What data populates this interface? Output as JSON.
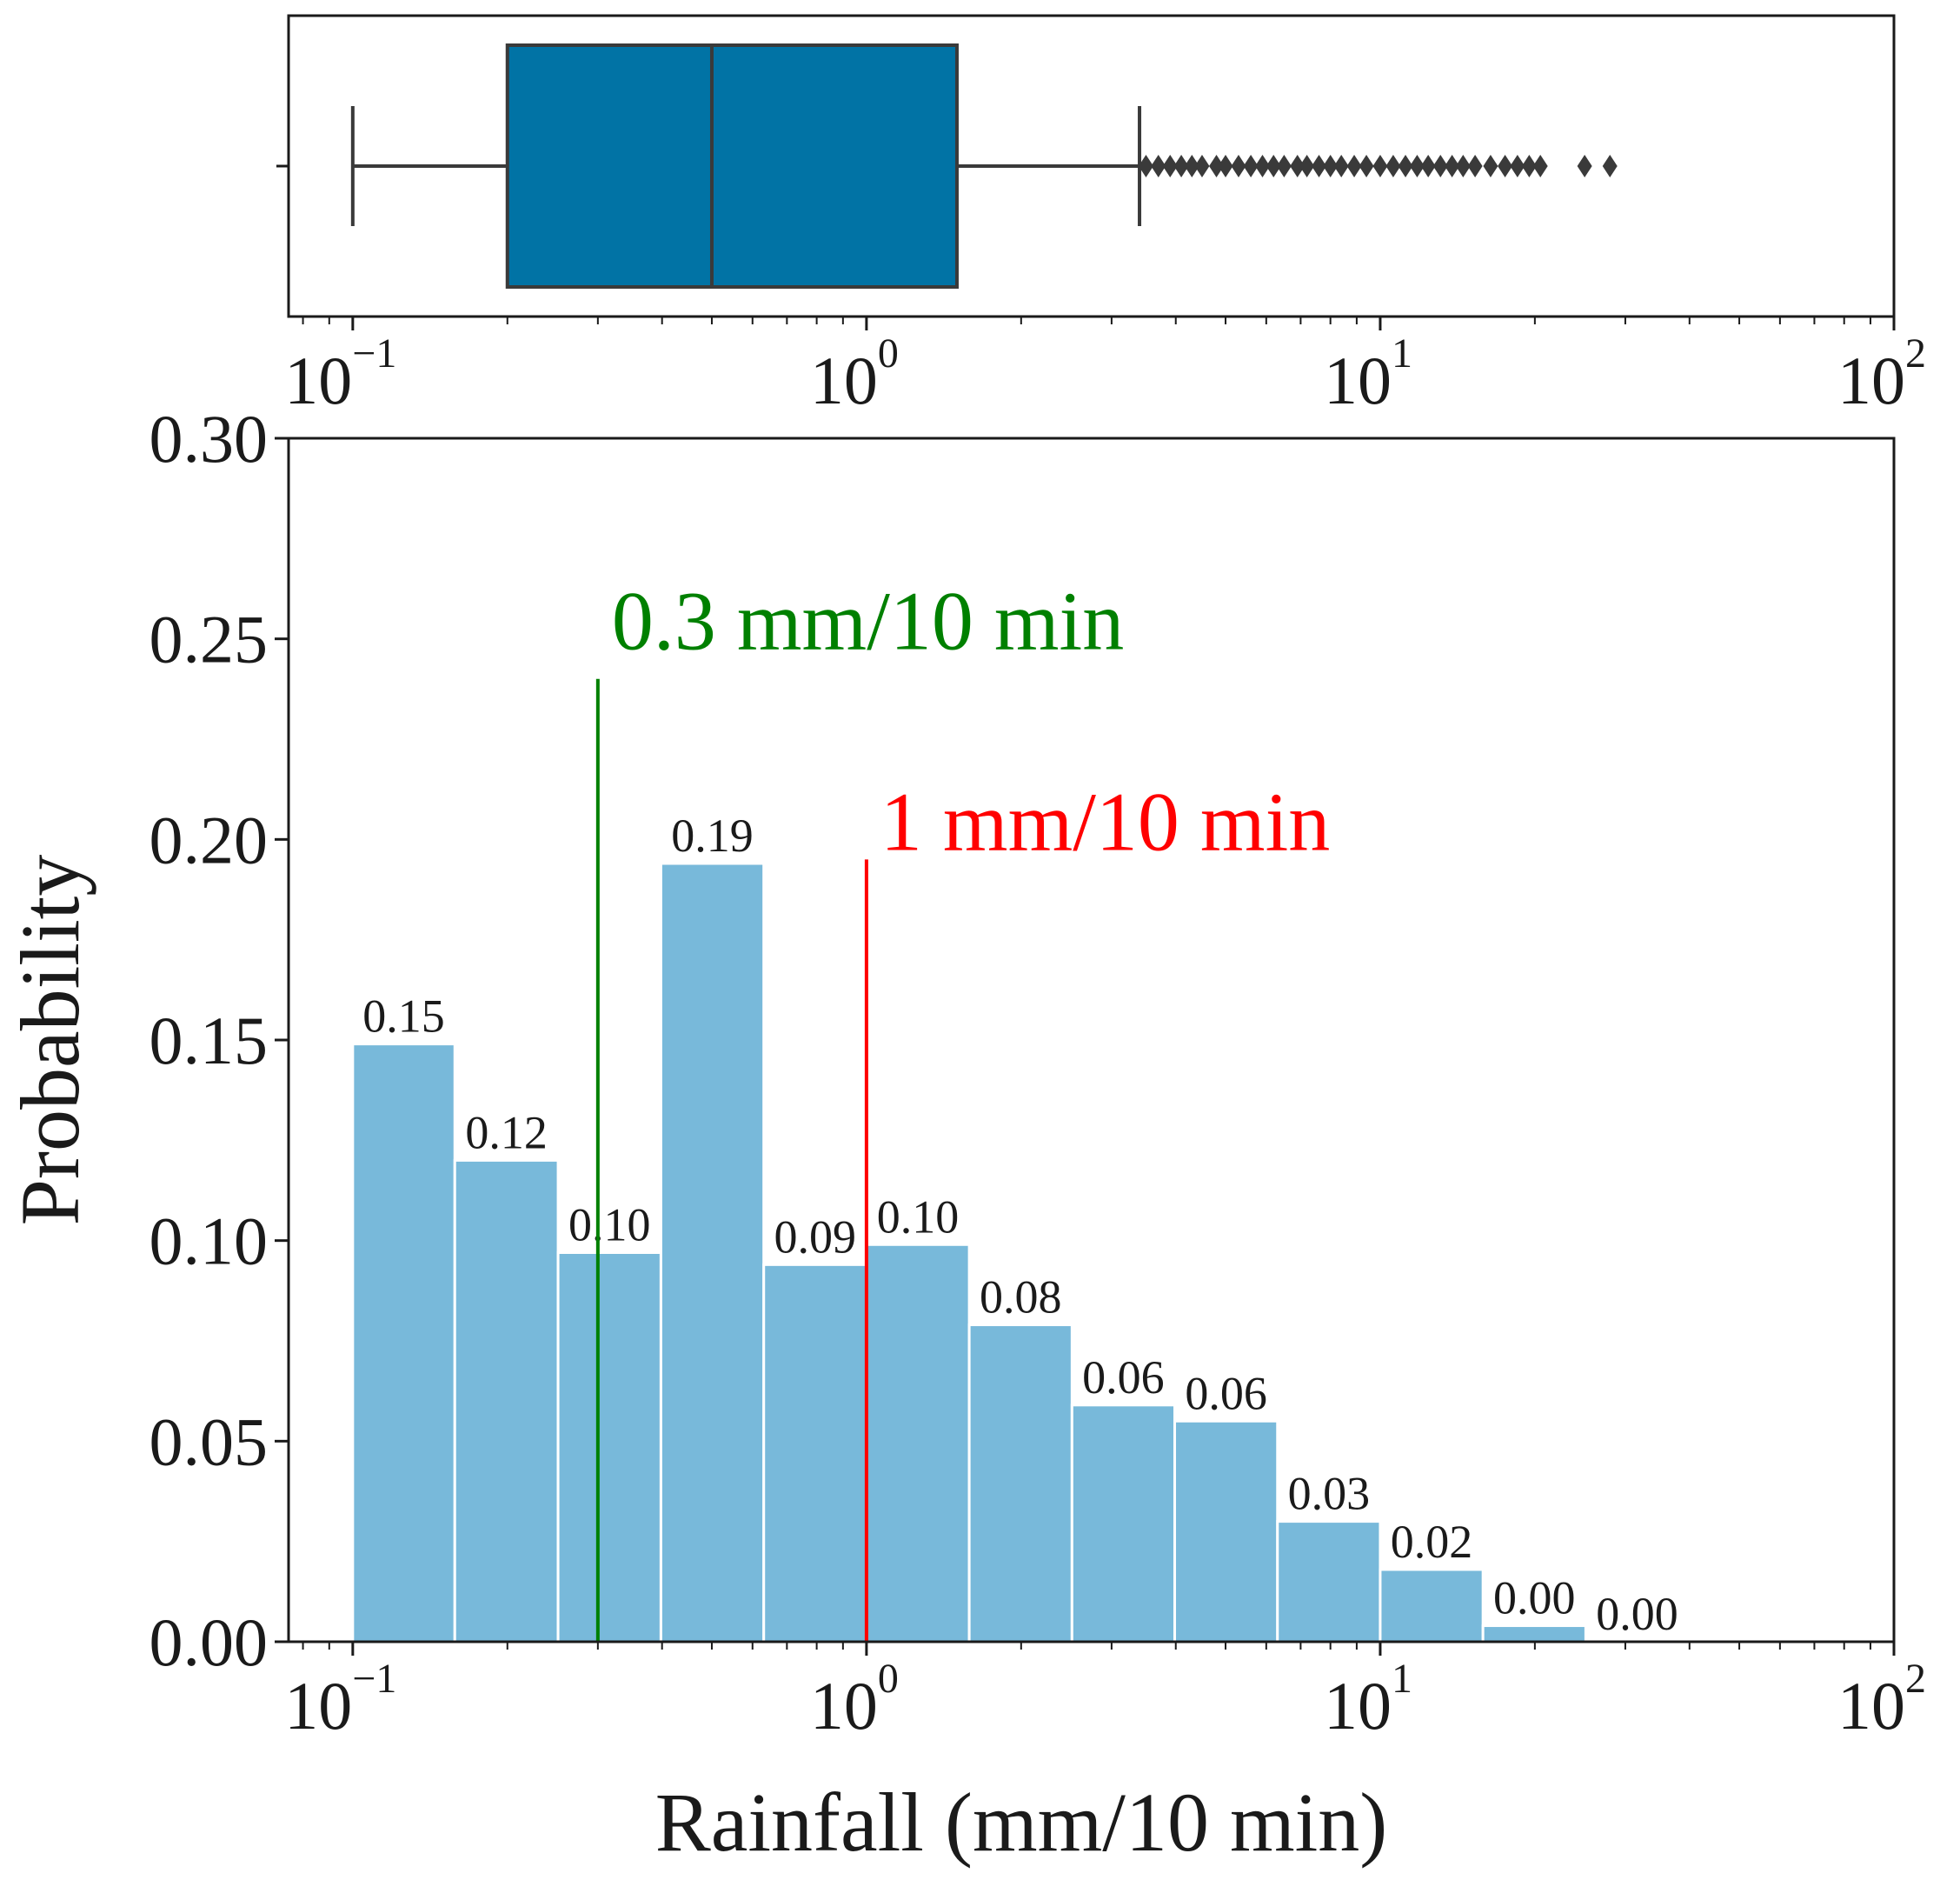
{
  "chart_data": [
    {
      "type": "box",
      "xscale": "log",
      "xlim": [
        0.075,
        100
      ],
      "box": {
        "whisker_low": 0.1,
        "q1": 0.2,
        "median": 0.5,
        "q3": 1.5,
        "whisker_high": 3.4,
        "fill": "#0173A5"
      },
      "outliers": [
        3.5,
        3.7,
        3.9,
        4.1,
        4.3,
        4.5,
        4.8,
        5.0,
        5.3,
        5.6,
        5.9,
        6.2,
        6.5,
        6.9,
        7.2,
        7.6,
        8.0,
        8.4,
        8.9,
        9.4,
        10.0,
        10.6,
        11.2,
        11.8,
        12.4,
        13.1,
        13.8,
        14.5,
        15.3,
        16.4,
        17.5,
        18.5,
        19.5,
        20.5,
        25.0,
        28.0
      ],
      "x_ticks": [
        {
          "base": "10",
          "exp": "−1"
        },
        {
          "base": "10",
          "exp": "0"
        },
        {
          "base": "10",
          "exp": "1"
        },
        {
          "base": "10",
          "exp": "2"
        }
      ]
    },
    {
      "type": "bar",
      "xscale": "log",
      "xlim": [
        0.075,
        100
      ],
      "ylim": [
        0,
        0.3
      ],
      "xlabel": "Rainfall (mm/10 min)",
      "ylabel": "Probability",
      "bar_color": "#78B9DA",
      "bin_edges": [
        0.1,
        0.158,
        0.251,
        0.398,
        0.631,
        1.0,
        1.585,
        2.512,
        3.981,
        6.31,
        10.0,
        15.85,
        25.12,
        39.81
      ],
      "values": [
        0.149,
        0.12,
        0.097,
        0.194,
        0.094,
        0.099,
        0.079,
        0.059,
        0.055,
        0.03,
        0.018,
        0.004,
        0.0
      ],
      "value_labels": [
        "0.15",
        "0.12",
        "0.10",
        "0.19",
        "0.09",
        "0.10",
        "0.08",
        "0.06",
        "0.06",
        "0.03",
        "0.02",
        "0.00",
        "0.00"
      ],
      "y_ticks": [
        "0.00",
        "0.05",
        "0.10",
        "0.15",
        "0.20",
        "0.25",
        "0.30"
      ],
      "x_ticks": [
        {
          "base": "10",
          "exp": "−1"
        },
        {
          "base": "10",
          "exp": "0"
        },
        {
          "base": "10",
          "exp": "1"
        },
        {
          "base": "10",
          "exp": "2"
        }
      ],
      "annotations": [
        {
          "name": "threshold-green",
          "x": 0.3,
          "line_top_y": 0.24,
          "label": "0.3 mm/10 min",
          "label_y": 0.255,
          "color": "#008000"
        },
        {
          "name": "threshold-red",
          "x": 1.0,
          "line_top_y": 0.195,
          "label": "1 mm/10 min",
          "label_y": 0.205,
          "color": "#FF0000"
        }
      ]
    }
  ]
}
